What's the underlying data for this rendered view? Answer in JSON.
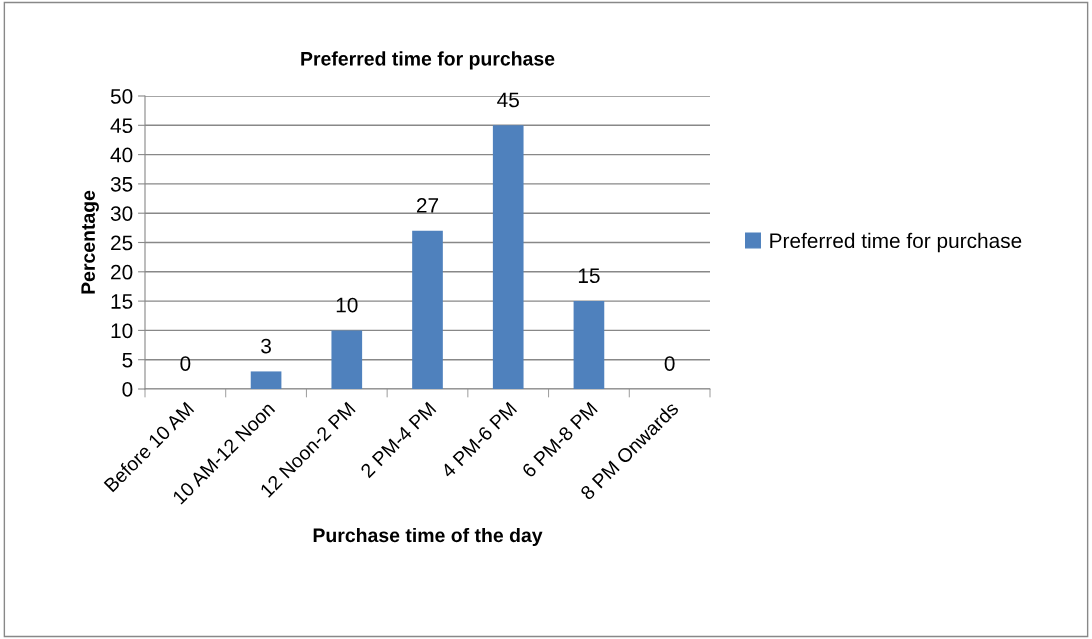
{
  "chart_data": {
    "type": "bar",
    "title": "Preferred time for purchase",
    "xlabel": "Purchase time of the day",
    "ylabel": "Percentage",
    "categories": [
      "Before 10 AM",
      "10 AM-12 Noon",
      "12 Noon-2 PM",
      "2 PM-4 PM",
      "4 PM-6 PM",
      "6 PM-8 PM",
      "8 PM Onwards"
    ],
    "series": [
      {
        "name": "Preferred time for purchase",
        "color": "#4f81bd",
        "values": [
          0,
          3,
          10,
          27,
          45,
          15,
          0
        ]
      }
    ],
    "ylim": [
      0,
      50
    ],
    "yticks": [
      0,
      5,
      10,
      15,
      20,
      25,
      30,
      35,
      40,
      45,
      50
    ],
    "grid": "y",
    "legend": "right",
    "data_labels": true
  }
}
